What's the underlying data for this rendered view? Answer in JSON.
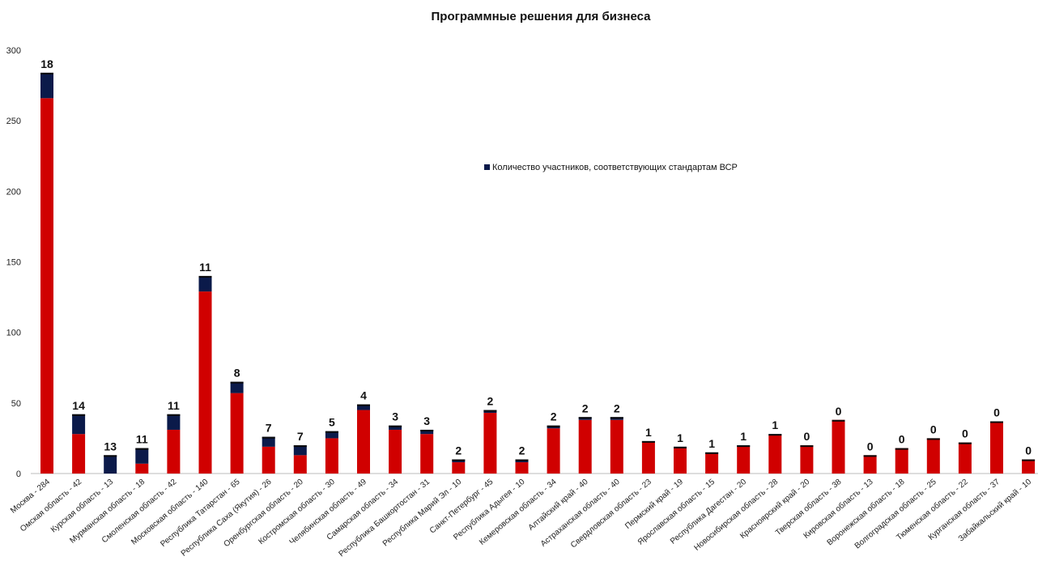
{
  "chart_data": {
    "type": "bar",
    "stacked": true,
    "title": "Программные решения для бизнеса",
    "categories": [
      "Москва - 284",
      "Омская область - 42",
      "Курская область - 13",
      "Мурманская область - 18",
      "Смоленская область - 42",
      "Московская область - 140",
      "Республика Татарстан - 65",
      "Республика Саха (Якутия) - 26",
      "Оренбургская область - 20",
      "Костромская область - 30",
      "Челябинская область - 49",
      "Самарская область - 34",
      "Республика Башкортостан - 31",
      "Республика Марий Эл - 10",
      "Санкт-Петербург - 45",
      "Республика Адыгея - 10",
      "Кемеровская область - 34",
      "Алтайский край - 40",
      "Астраханская область - 40",
      "Свердловская область - 23",
      "Пермский край - 19",
      "Ярославская область - 15",
      "Республика Дагестан - 20",
      "Новосибирская область - 28",
      "Красноярский край - 20",
      "Тверская область - 38",
      "Кировская область - 13",
      "Воронежская область - 18",
      "Волгоградская область - 25",
      "Тюменская область - 22",
      "Курганская область - 37",
      "Забайкальский край - 10"
    ],
    "series": [
      {
        "values": [
          266,
          28,
          0,
          7,
          31,
          129,
          57,
          19,
          13,
          25,
          45,
          31,
          28,
          8,
          43,
          8,
          32,
          38,
          38,
          22,
          18,
          14,
          19,
          27,
          20,
          38,
          13,
          18,
          25,
          22,
          37,
          10
        ],
        "color": "#d00000"
      },
      {
        "name": "Количество участников, соответствующих стандартам ВСР",
        "values": [
          18,
          14,
          13,
          11,
          11,
          11,
          8,
          7,
          7,
          5,
          4,
          3,
          3,
          2,
          2,
          2,
          2,
          2,
          2,
          1,
          1,
          1,
          1,
          1,
          0,
          0,
          0,
          0,
          0,
          0,
          0,
          0
        ],
        "color": "#0b1a4a"
      }
    ],
    "data_labels": [
      "18",
      "14",
      "13",
      "11",
      "11",
      "11",
      "8",
      "7",
      "7",
      "5",
      "4",
      "3",
      "3",
      "2",
      "2",
      "2",
      "2",
      "2",
      "2",
      "1",
      "1",
      "1",
      "1",
      "1",
      "0",
      "0",
      "0",
      "0",
      "0",
      "0",
      "0",
      "0"
    ],
    "yticks": [
      "0",
      "50",
      "100",
      "150",
      "200",
      "250",
      "300"
    ],
    "ylim": [
      0,
      300
    ],
    "grid": false,
    "legend_position": "center-right"
  }
}
